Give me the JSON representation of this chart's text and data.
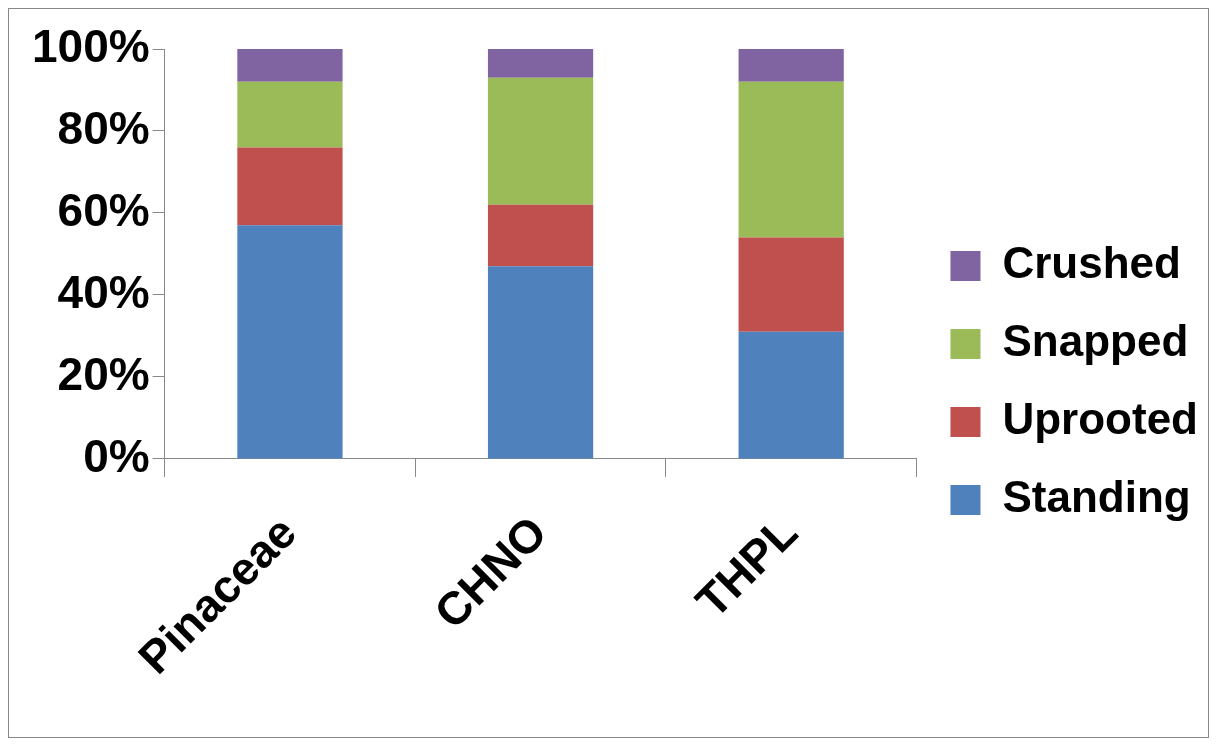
{
  "chart_data": {
    "type": "bar",
    "stacked": true,
    "categories": [
      "Pinaceae",
      "CHNO",
      "THPL"
    ],
    "series": [
      {
        "name": "Standing",
        "color": "#4f81bd",
        "values": [
          57,
          47,
          31
        ]
      },
      {
        "name": "Uprooted",
        "color": "#c0504d",
        "values": [
          19,
          15,
          23
        ]
      },
      {
        "name": "Snapped",
        "color": "#9bbb59",
        "values": [
          16,
          31,
          38
        ]
      },
      {
        "name": "Crushed",
        "color": "#8064a2",
        "values": [
          8,
          7,
          8
        ]
      }
    ],
    "ylim": [
      0,
      100
    ],
    "yticks": [
      {
        "value": 0,
        "label": "0%"
      },
      {
        "value": 20,
        "label": "20%"
      },
      {
        "value": 40,
        "label": "40%"
      },
      {
        "value": 60,
        "label": "60%"
      },
      {
        "value": 80,
        "label": "80%"
      },
      {
        "value": 100,
        "label": "100%"
      }
    ],
    "grid": false,
    "legend": "right"
  }
}
